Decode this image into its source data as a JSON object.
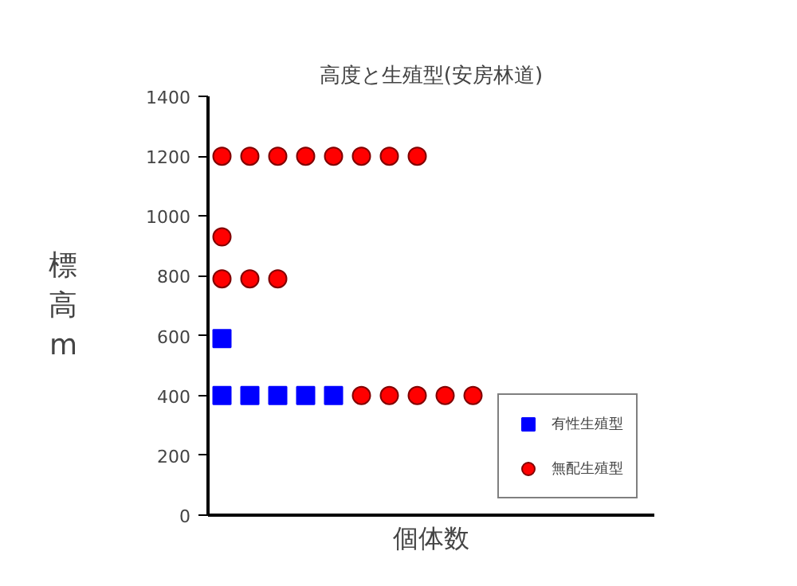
{
  "chart_data": {
    "type": "scatter",
    "title": "高度と生殖型(安房林道)",
    "xlabel": "個体数",
    "ylabel": "標高m",
    "categories": [
      null,
      null,
      null,
      null,
      null,
      null,
      null,
      null,
      null,
      null,
      null,
      null,
      null,
      null,
      null,
      null
    ],
    "ylim": [
      0,
      1400
    ],
    "yticks": [
      0,
      200,
      400,
      600,
      800,
      1000,
      1200,
      1400
    ],
    "tick_labels": "y",
    "grid": false,
    "legend": "bottom right",
    "series": [
      {
        "name": "有性生殖型",
        "color": "#0000ff",
        "marker": "square",
        "values": [
          400,
          400,
          400,
          400,
          400,
          null,
          null,
          null,
          null,
          null,
          null,
          null,
          null,
          null,
          null,
          null
        ]
      },
      {
        "color": "#0000ff",
        "marker": "square",
        "values": [
          590,
          null,
          null,
          null,
          null,
          null,
          null,
          null,
          null,
          null,
          null,
          null,
          null,
          null,
          null,
          null
        ]
      },
      {
        "name": "無配生殖型",
        "color": "#ff0000",
        "marker": "circle",
        "values": [
          1200,
          1200,
          1200,
          1200,
          1200,
          1200,
          1200,
          1200,
          null,
          null,
          null,
          null,
          null,
          null,
          null,
          null
        ]
      },
      {
        "color": "#ff0000",
        "marker": "circle",
        "values": [
          930,
          null,
          null,
          null,
          null,
          null,
          null,
          null,
          null,
          null,
          null,
          null,
          null,
          null,
          null,
          null
        ]
      },
      {
        "color": "#ff0000",
        "marker": "circle",
        "values": [
          790,
          790,
          790,
          null,
          null,
          null,
          null,
          null,
          null,
          null,
          null,
          null,
          null,
          null,
          null,
          null
        ]
      },
      {
        "color": "#ff0000",
        "marker": "circle",
        "values": [
          null,
          null,
          null,
          null,
          null,
          400,
          400,
          400,
          400,
          400,
          null,
          null,
          null,
          null,
          null,
          null
        ]
      }
    ]
  }
}
